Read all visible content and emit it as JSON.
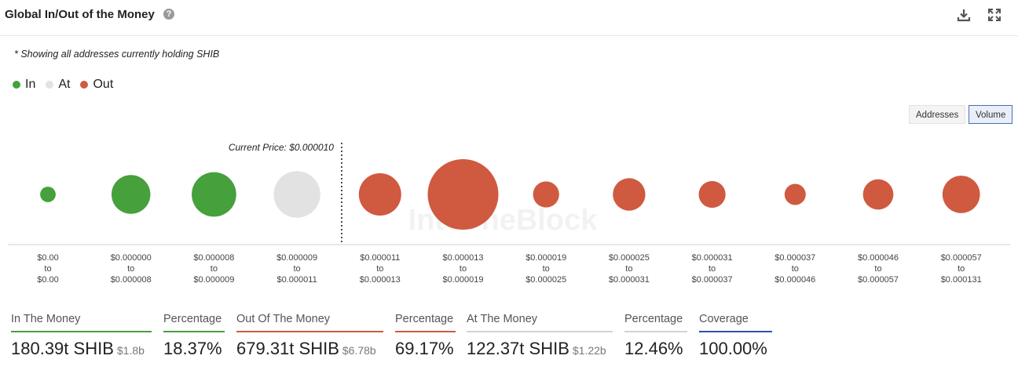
{
  "header": {
    "title": "Global In/Out of the Money",
    "help_icon": "help-circle-icon",
    "download_icon": "download-icon",
    "expand_icon": "expand-icon"
  },
  "note": "* Showing all addresses currently holding SHIB",
  "legend": [
    {
      "label": "In",
      "color": "#46a03c"
    },
    {
      "label": "At",
      "color": "#e2e2e2"
    },
    {
      "label": "Out",
      "color": "#cf5a40"
    }
  ],
  "toggles": {
    "addresses": "Addresses",
    "volume": "Volume",
    "active": "Volume"
  },
  "watermark": "IntoTheBlock",
  "chart_data": {
    "type": "scatter",
    "subtype": "bubble",
    "measure": "Volume",
    "current_price_label": "Current Price: $0.000010",
    "current_price_between": [
      3,
      4
    ],
    "categories": [
      {
        "from": "$0.00",
        "to": "$0.00"
      },
      {
        "from": "$0.000000",
        "to": "$0.000008"
      },
      {
        "from": "$0.000008",
        "to": "$0.000009"
      },
      {
        "from": "$0.000009",
        "to": "$0.000011"
      },
      {
        "from": "$0.000011",
        "to": "$0.000013"
      },
      {
        "from": "$0.000013",
        "to": "$0.000019"
      },
      {
        "from": "$0.000019",
        "to": "$0.000025"
      },
      {
        "from": "$0.000025",
        "to": "$0.000031"
      },
      {
        "from": "$0.000031",
        "to": "$0.000037"
      },
      {
        "from": "$0.000037",
        "to": "$0.000046"
      },
      {
        "from": "$0.000046",
        "to": "$0.000057"
      },
      {
        "from": "$0.000057",
        "to": "$0.000131"
      }
    ],
    "status": [
      "in",
      "in",
      "in",
      "at",
      "out",
      "out",
      "out",
      "out",
      "out",
      "out",
      "out",
      "out"
    ],
    "relative_size": [
      0.22,
      0.55,
      0.63,
      0.66,
      0.6,
      1.0,
      0.37,
      0.46,
      0.38,
      0.3,
      0.43,
      0.53
    ],
    "connector_word": "to",
    "colors": {
      "in": "#46a03c",
      "at": "#e2e2e2",
      "out": "#cf5a40"
    }
  },
  "stats": [
    {
      "label": "In The Money",
      "value": "180.39t SHIB",
      "sub": "$1.8b",
      "color": "#46a03c"
    },
    {
      "label": "Percentage",
      "value": "18.37%",
      "sub": "",
      "color": "#46a03c"
    },
    {
      "label": "Out Of The Money",
      "value": "679.31t SHIB",
      "sub": "$6.78b",
      "color": "#cf5a40"
    },
    {
      "label": "Percentage",
      "value": "69.17%",
      "sub": "",
      "color": "#cf5a40"
    },
    {
      "label": "At The Money",
      "value": "122.37t SHIB",
      "sub": "$1.22b",
      "color": "#d3d3d3"
    },
    {
      "label": "Percentage",
      "value": "12.46%",
      "sub": "",
      "color": "#d3d3d3"
    },
    {
      "label": "Coverage",
      "value": "100.00%",
      "sub": "",
      "color": "#2d4fb8"
    }
  ]
}
